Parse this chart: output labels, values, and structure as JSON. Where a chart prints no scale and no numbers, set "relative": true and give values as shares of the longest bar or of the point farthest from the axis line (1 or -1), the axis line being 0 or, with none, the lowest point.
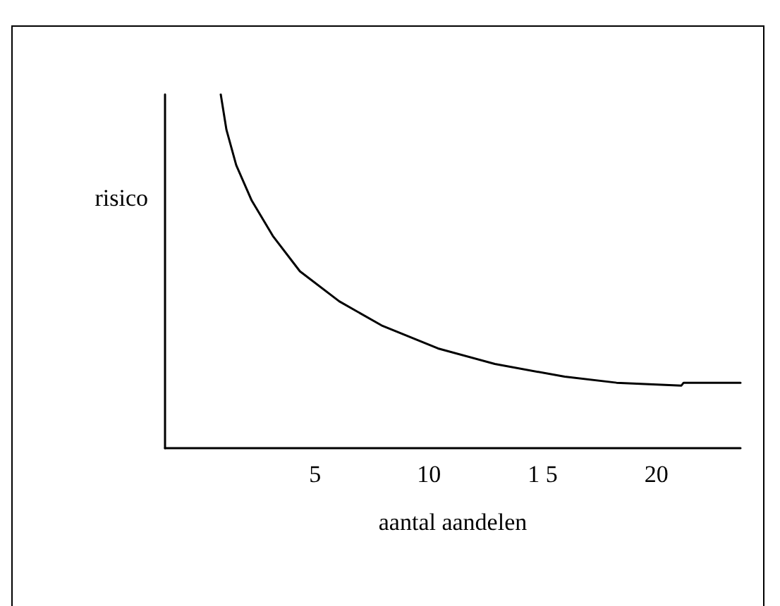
{
  "chart_data": {
    "type": "line",
    "xlabel": "aantal aandelen",
    "ylabel": "risico",
    "relative": true,
    "xlim": [
      -1.6,
      23.7
    ],
    "xticks": [
      5,
      10,
      {
        "value": 15,
        "label": "1 5"
      },
      20
    ],
    "grid": false,
    "marker": "none",
    "line_style": "solid",
    "series": [
      {
        "color": "#000000",
        "x": [
          0.85,
          1.1,
          1.53,
          2.21,
          3.14,
          4.33,
          6.06,
          7.92,
          10.4,
          12.9,
          15.97,
          18.25,
          21.1,
          21.2,
          23.7
        ],
        "values": [
          1.0,
          0.9,
          0.8,
          0.7,
          0.6,
          0.5,
          0.415,
          0.347,
          0.282,
          0.238,
          0.202,
          0.185,
          0.177,
          0.185,
          0.185
        ]
      }
    ]
  }
}
